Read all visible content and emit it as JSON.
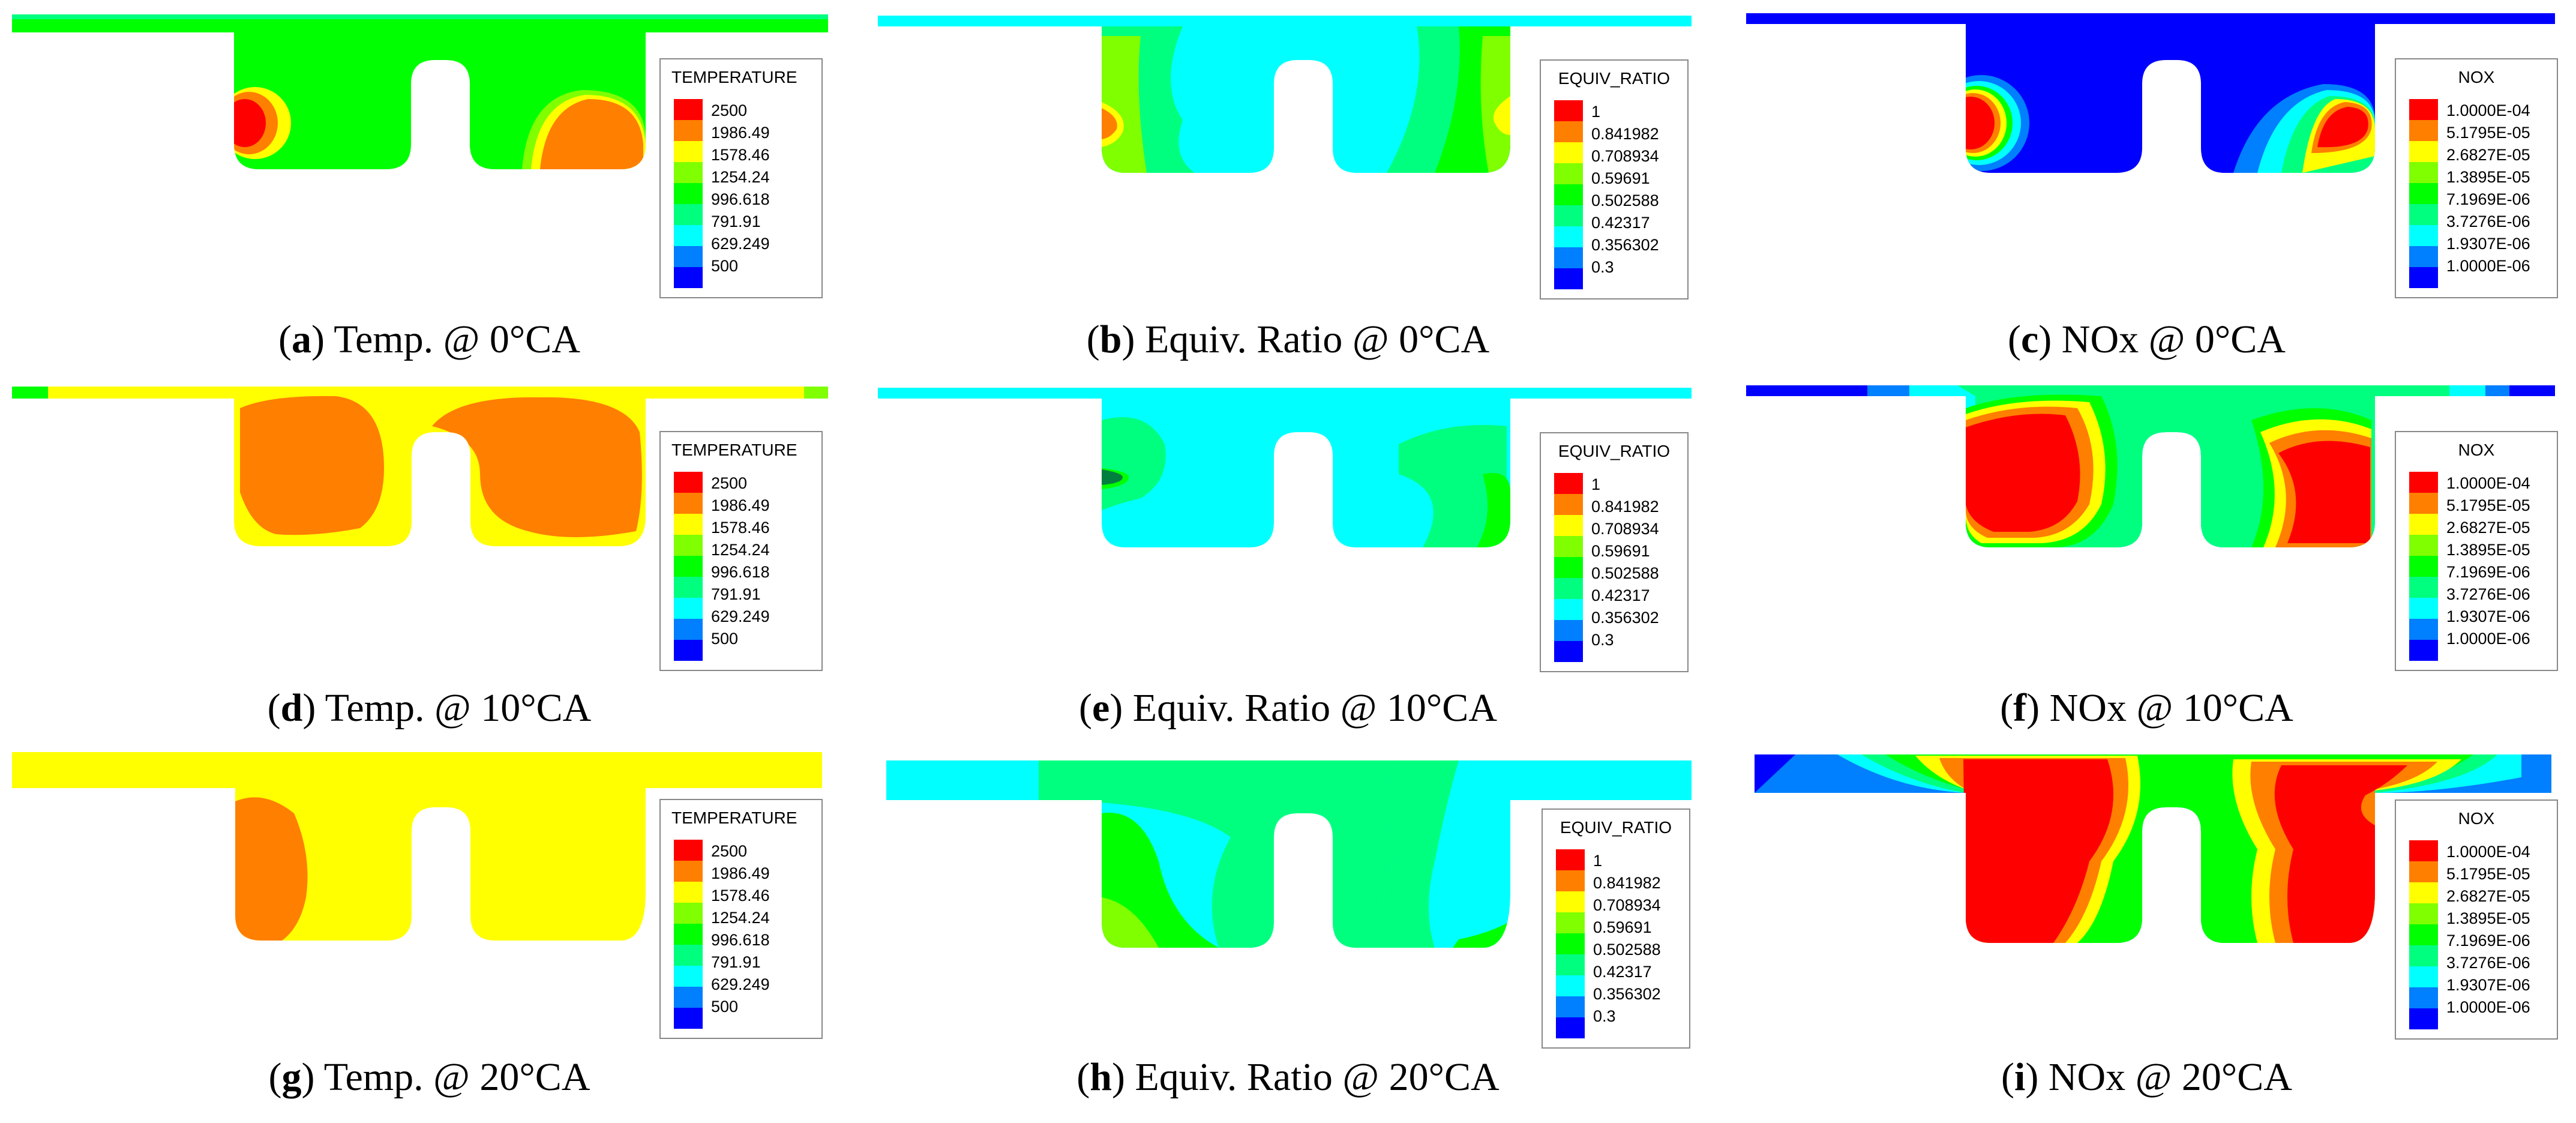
{
  "legends": {
    "temperature": {
      "title": "TEMPERATURE",
      "ticks": [
        "2500",
        "1986.49",
        "1578.46",
        "1254.24",
        "996.618",
        "791.91",
        "629.249",
        "500"
      ]
    },
    "equiv_ratio": {
      "title": "EQUIV_RATIO",
      "ticks": [
        "1",
        "0.841982",
        "0.708934",
        "0.59691",
        "0.502588",
        "0.42317",
        "0.356302",
        "0.3"
      ]
    },
    "nox": {
      "title": "NOX",
      "ticks": [
        "1.0000E-04",
        "5.1795E-05",
        "2.6827E-05",
        "1.3895E-05",
        "7.1969E-06",
        "3.7276E-06",
        "1.9307E-06",
        "1.0000E-06"
      ]
    }
  },
  "colormap": [
    "#ff0000",
    "#ff7f00",
    "#ffff00",
    "#7fff00",
    "#00ff00",
    "#00ff7f",
    "#00ffff",
    "#007fff",
    "#0000ff"
  ],
  "panels": [
    {
      "letter": "a",
      "caption": "Temp. @ 0°CA"
    },
    {
      "letter": "b",
      "caption": "Equiv. Ratio @ 0°CA"
    },
    {
      "letter": "c",
      "caption": "NOx @ 0°CA"
    },
    {
      "letter": "d",
      "caption": "Temp. @ 10°CA"
    },
    {
      "letter": "e",
      "caption": "Equiv. Ratio @ 10°CA"
    },
    {
      "letter": "f",
      "caption": "NOx @ 10°CA"
    },
    {
      "letter": "g",
      "caption": "Temp. @ 20°CA"
    },
    {
      "letter": "h",
      "caption": "Equiv. Ratio @ 20°CA"
    },
    {
      "letter": "i",
      "caption": "NOx @ 20°CA"
    }
  ]
}
